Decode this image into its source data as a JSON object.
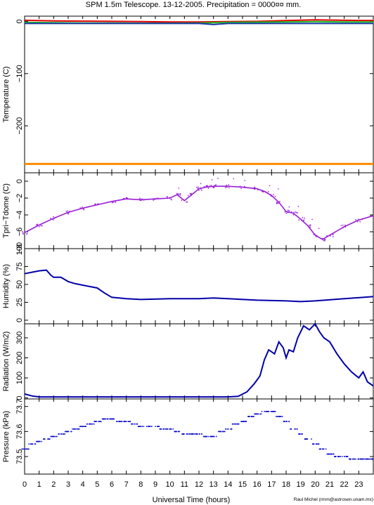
{
  "title": "SPM 1.5m Telescope. 13-12-2005. Precipitation = 0000¤¤ mm.",
  "xlabel": "Universal Time (hours)",
  "credit": "Raul Michel (rmm@astrosen.unam.mx)",
  "x_ticks": [
    "0",
    "1",
    "2",
    "3",
    "4",
    "5",
    "6",
    "7",
    "8",
    "9",
    "10",
    "11",
    "12",
    "13",
    "14",
    "15",
    "16",
    "17",
    "18",
    "19",
    "20",
    "21",
    "22",
    "23"
  ],
  "colors": {
    "red": "#dd0000",
    "green": "#22bb22",
    "blue": "#1a35a8",
    "navy": "#0000aa",
    "orange": "#ff8c00",
    "purple": "#9a1ed6"
  },
  "chart_data": [
    {
      "type": "line",
      "ylabel": "Temperature (C)",
      "ylim": [
        -290,
        10
      ],
      "yticks": [
        0,
        -100,
        -200
      ],
      "ytick_labels": [
        "0",
        "−100",
        "−200"
      ],
      "series": [
        {
          "x": [
            0,
            2,
            4,
            6,
            8,
            10,
            12,
            14,
            16,
            18,
            20,
            22,
            24
          ],
          "y": [
            2,
            1,
            0.5,
            0,
            -0.5,
            -1,
            -1,
            -0.5,
            0,
            1.5,
            3,
            2,
            1.5
          ],
          "color": "#dd0000"
        },
        {
          "x": [
            0,
            2,
            4,
            6,
            8,
            10,
            12,
            14,
            16,
            18,
            20,
            22,
            24
          ],
          "y": [
            -2,
            -2.5,
            -3,
            -3,
            -3.5,
            -3.5,
            -3,
            -2,
            -1.5,
            -1,
            -0.5,
            -1,
            -1
          ],
          "color": "#22bb22"
        },
        {
          "x": [
            0,
            4,
            8,
            12,
            13,
            14,
            16,
            20,
            24
          ],
          "y": [
            -4,
            -4,
            -4,
            -4,
            -6,
            -4,
            -4,
            -4,
            -4
          ],
          "color": "#1a35a8"
        },
        {
          "x": [
            0,
            24
          ],
          "y": [
            -273,
            -273
          ],
          "color": "#ff8c00"
        }
      ]
    },
    {
      "type": "scatter",
      "ylabel": "Tpri−Tdome (C)",
      "ylim": [
        -8,
        1
      ],
      "yticks": [
        0,
        -2,
        -4,
        -6,
        -8
      ],
      "ytick_labels": [
        "0",
        "−2",
        "−4",
        "−6",
        "−8"
      ],
      "series": [
        {
          "x": [
            0,
            1,
            2,
            3,
            4,
            5,
            6,
            7,
            8,
            9,
            10,
            10.5,
            11,
            11.5,
            12,
            12.5,
            13,
            14,
            15,
            16,
            16.5,
            17,
            17.5,
            18,
            18.5,
            19,
            19.5,
            20,
            20.5,
            21,
            22,
            23,
            24
          ],
          "y": [
            -6.1,
            -5.2,
            -4.4,
            -3.7,
            -3.2,
            -2.8,
            -2.4,
            -2.1,
            -2.2,
            -2.1,
            -2.0,
            -1.6,
            -2.3,
            -1.6,
            -0.9,
            -0.7,
            -0.6,
            -0.6,
            -0.7,
            -0.9,
            -1.2,
            -1.7,
            -2.5,
            -3.6,
            -3.8,
            -4.5,
            -5.3,
            -6.4,
            -6.9,
            -6.4,
            -5.4,
            -4.6,
            -4.1
          ],
          "color": "#9a1ed6"
        }
      ]
    },
    {
      "type": "line",
      "ylabel": "Humidity (%)",
      "ylim": [
        -5,
        100
      ],
      "yticks": [
        0,
        25,
        50,
        75,
        100
      ],
      "ytick_labels": [
        "0",
        "25",
        "50",
        "75",
        "100"
      ],
      "series": [
        {
          "x": [
            0,
            0.5,
            1,
            1.5,
            1.8,
            2,
            2.5,
            3,
            3.5,
            4,
            4.5,
            5,
            5.5,
            6,
            7,
            8,
            10,
            12,
            13,
            14,
            16,
            18,
            19,
            20,
            22,
            24
          ],
          "y": [
            65,
            67,
            69,
            70,
            63,
            60,
            60,
            54,
            51,
            49,
            47,
            45,
            38,
            32,
            30,
            29,
            30,
            30,
            31,
            30,
            28,
            27,
            26,
            27,
            30,
            33
          ],
          "color": "#0000aa"
        }
      ]
    },
    {
      "type": "line",
      "ylabel": "Radiation (W/m2)",
      "ylim": [
        -5,
        370
      ],
      "yticks": [
        0,
        100,
        200,
        300
      ],
      "ytick_labels": [
        "0",
        "100",
        "200",
        "300"
      ],
      "series": [
        {
          "x": [
            0,
            0.5,
            1,
            2,
            4,
            6,
            8,
            10,
            12,
            14,
            14.7,
            15.3,
            15.8,
            16.2,
            16.5,
            16.8,
            17.2,
            17.5,
            17.8,
            18,
            18.2,
            18.5,
            18.8,
            19.2,
            19.6,
            20,
            20.3,
            20.6,
            21,
            21.5,
            22,
            22.5,
            23,
            23.3,
            23.6,
            24
          ],
          "y": [
            20,
            10,
            5,
            5,
            5,
            5,
            5,
            5,
            5,
            5,
            8,
            30,
            70,
            110,
            190,
            240,
            220,
            280,
            250,
            200,
            240,
            230,
            300,
            360,
            340,
            370,
            330,
            300,
            280,
            220,
            170,
            130,
            100,
            130,
            80,
            60
          ],
          "color": "#0000aa"
        }
      ]
    },
    {
      "type": "scatter",
      "ylabel": "Pressure (kPa)",
      "ylim": [
        73.43,
        73.73
      ],
      "yticks": [
        73.5,
        73.6,
        73.7
      ],
      "ytick_labels": [
        "73.5",
        "73.6",
        "73.7"
      ],
      "series": [
        {
          "x": [
            0,
            0.5,
            1,
            1.5,
            2,
            2.5,
            3,
            3.5,
            4,
            4.5,
            5,
            5.5,
            6,
            6.5,
            7,
            7.5,
            8,
            8.5,
            9,
            9.5,
            10,
            10.5,
            11,
            11.5,
            12,
            12.5,
            13,
            13.5,
            14,
            14.5,
            15,
            15.5,
            16,
            16.5,
            17,
            17.5,
            18,
            18.5,
            19,
            19.5,
            20,
            20.5,
            21,
            21.5,
            22,
            22.5,
            23,
            23.5,
            24
          ],
          "y": [
            73.53,
            73.55,
            73.56,
            73.57,
            73.58,
            73.59,
            73.6,
            73.61,
            73.62,
            73.63,
            73.64,
            73.65,
            73.65,
            73.64,
            73.64,
            73.63,
            73.62,
            73.62,
            73.62,
            73.61,
            73.61,
            73.6,
            73.59,
            73.59,
            73.59,
            73.58,
            73.58,
            73.6,
            73.61,
            73.63,
            73.64,
            73.66,
            73.67,
            73.68,
            73.68,
            73.66,
            73.64,
            73.61,
            73.59,
            73.57,
            73.55,
            73.53,
            73.51,
            73.5,
            73.5,
            73.49,
            73.49,
            73.49,
            73.49
          ],
          "color": "#0000cc"
        }
      ]
    }
  ]
}
